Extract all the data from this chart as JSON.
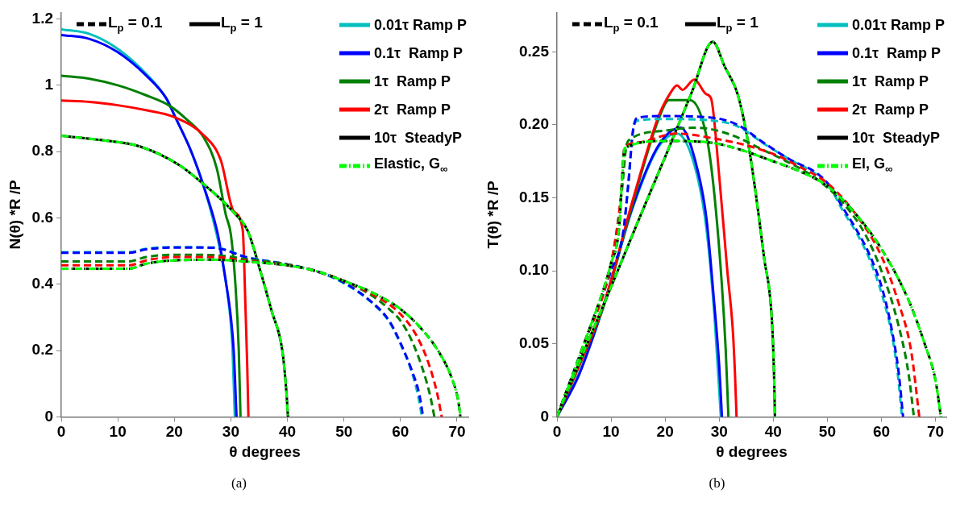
{
  "chart_data": [
    {
      "type": "line",
      "title": "(a)",
      "xlabel": "θ degrees",
      "ylabel": "N(θ) *R /P",
      "xlim": [
        0,
        72
      ],
      "ylim": [
        0,
        1.22
      ],
      "xticks": [
        0,
        10,
        20,
        30,
        40,
        50,
        60,
        70
      ],
      "yticks": [
        0,
        0.2,
        0.4,
        0.6,
        0.8,
        1,
        1.2
      ],
      "legend": "top right",
      "marker": "none",
      "annotations": [
        "L$_{p}$ = 0.1",
        "L$_{p}$ = 1"
      ],
      "series": [
        {
          "name": "0.01τ Ramp P",
          "color": "#00bfbf",
          "line_style": "solid",
          "x": [
            0,
            5,
            10,
            15,
            18.6,
            20,
            23,
            25.3,
            27.5,
            29,
            30,
            30.3,
            30.7
          ],
          "values": [
            1.169,
            1.155,
            1.11,
            1.035,
            0.96,
            0.91,
            0.8,
            0.69,
            0.55,
            0.42,
            0.28,
            0.2,
            0
          ]
        },
        {
          "name": "0.1τ  Ramp P",
          "color": "#0000ff",
          "line_style": "solid",
          "x": [
            0,
            5,
            10,
            15,
            18.6,
            20,
            23,
            25.3,
            27.7,
            29,
            30,
            30.5,
            31
          ],
          "values": [
            1.152,
            1.14,
            1.1,
            1.03,
            0.96,
            0.91,
            0.8,
            0.69,
            0.55,
            0.42,
            0.3,
            0.2,
            0
          ]
        },
        {
          "name": "1τ  Ramp P",
          "color": "#008000",
          "line_style": "solid",
          "x": [
            0,
            5,
            10,
            15,
            19,
            22,
            25.3,
            27.5,
            29.1,
            30,
            30.8,
            31.4,
            31.7
          ],
          "values": [
            1.029,
            1.02,
            1.0,
            0.97,
            0.94,
            0.9,
            0.84,
            0.75,
            0.61,
            0.55,
            0.4,
            0.2,
            0
          ]
        },
        {
          "name": "2τ  Ramp P",
          "color": "#ff0000",
          "line_style": "solid",
          "x": [
            0,
            5,
            10,
            15,
            20,
            25.3,
            28.2,
            30.5,
            32.1,
            32.6,
            32.9,
            33.1
          ],
          "values": [
            0.954,
            0.95,
            0.94,
            0.925,
            0.904,
            0.848,
            0.775,
            0.62,
            0.563,
            0.32,
            0.15,
            0
          ]
        },
        {
          "name": "10τ  SteadyP",
          "color": "#000000",
          "line_style": "solid",
          "x": [
            0,
            7,
            14,
            21,
            25.3,
            28,
            30.5,
            33,
            35.3,
            37.2,
            39.1,
            39.8,
            40.1
          ],
          "values": [
            0.848,
            0.835,
            0.815,
            0.758,
            0.7,
            0.66,
            0.617,
            0.56,
            0.435,
            0.32,
            0.2,
            0.08,
            0
          ]
        },
        {
          "name": "Elastic, G$_{∞}$",
          "color": "#00ff00",
          "line_style": "dashdot",
          "x": [
            0,
            7,
            14,
            21,
            25.3,
            28,
            30.5,
            33,
            35.3,
            37.2,
            39.1,
            39.8,
            40.1
          ],
          "values": [
            0.848,
            0.835,
            0.815,
            0.758,
            0.7,
            0.66,
            0.617,
            0.56,
            0.435,
            0.32,
            0.2,
            0.08,
            0
          ]
        },
        {
          "color": "#00bfbf",
          "line_style": "dashed",
          "x": [
            0,
            12,
            15,
            20,
            27,
            33,
            40,
            45,
            50,
            55,
            58,
            60,
            62,
            63.1,
            63.8
          ],
          "values": [
            0.497,
            0.497,
            0.507,
            0.512,
            0.511,
            0.481,
            0.46,
            0.44,
            0.403,
            0.343,
            0.287,
            0.22,
            0.135,
            0.065,
            0
          ]
        },
        {
          "color": "#0000ff",
          "line_style": "dashed",
          "x": [
            0,
            12,
            15,
            20,
            27,
            33,
            40,
            45,
            50,
            55,
            58,
            60,
            62,
            63.3,
            64
          ],
          "values": [
            0.495,
            0.495,
            0.505,
            0.511,
            0.51,
            0.48,
            0.46,
            0.44,
            0.405,
            0.345,
            0.29,
            0.223,
            0.14,
            0.07,
            0
          ]
        },
        {
          "color": "#008000",
          "line_style": "dashed",
          "x": [
            0,
            12,
            15,
            20,
            27,
            33,
            40,
            45,
            50,
            55,
            58,
            60,
            62,
            64,
            65.3,
            66
          ],
          "values": [
            0.469,
            0.469,
            0.482,
            0.489,
            0.488,
            0.475,
            0.46,
            0.44,
            0.41,
            0.365,
            0.325,
            0.29,
            0.23,
            0.14,
            0.06,
            0
          ]
        },
        {
          "color": "#ff0000",
          "line_style": "dashed",
          "x": [
            0,
            12,
            15,
            20,
            27,
            33,
            40,
            45,
            50,
            55,
            60,
            63,
            65,
            66.5,
            67.3
          ],
          "values": [
            0.457,
            0.457,
            0.472,
            0.482,
            0.482,
            0.47,
            0.458,
            0.44,
            0.41,
            0.37,
            0.31,
            0.24,
            0.16,
            0.07,
            0
          ]
        },
        {
          "color": "#000000",
          "line_style": "dashed",
          "x": [
            0,
            12,
            15,
            20,
            27,
            33,
            40,
            45,
            50,
            55,
            60,
            64,
            67,
            69,
            70.2,
            70.6
          ],
          "values": [
            0.447,
            0.447,
            0.462,
            0.472,
            0.474,
            0.468,
            0.457,
            0.44,
            0.41,
            0.375,
            0.325,
            0.26,
            0.19,
            0.12,
            0.05,
            0
          ]
        },
        {
          "color": "#00ff00",
          "line_style": "dashdot",
          "x": [
            0,
            12,
            15,
            20,
            27,
            33,
            40,
            45,
            50,
            55,
            60,
            64,
            67,
            69,
            70.2,
            70.6
          ],
          "values": [
            0.447,
            0.447,
            0.462,
            0.472,
            0.474,
            0.468,
            0.457,
            0.44,
            0.41,
            0.375,
            0.325,
            0.26,
            0.19,
            0.12,
            0.05,
            0
          ]
        }
      ]
    },
    {
      "type": "line",
      "title": "(b)",
      "xlabel": "θ degrees",
      "ylabel": "T(θ) *R /P",
      "xlim": [
        0,
        72
      ],
      "ylim": [
        0,
        0.277
      ],
      "xticks": [
        0,
        10,
        20,
        30,
        40,
        50,
        60,
        70
      ],
      "yticks": [
        0,
        0.05,
        {
          "value": 0.1,
          "label": "0.10"
        },
        0.15,
        {
          "value": 0.2,
          "label": "0.20"
        },
        0.25
      ],
      "legend": "top right",
      "marker": "none",
      "annotations": [
        "L$_{p}$ = 0.1",
        "L$_{p}$ = 1"
      ],
      "series": [
        {
          "name": "0.01τ Ramp P",
          "color": "#00bfbf",
          "line_style": "solid",
          "x": [
            0,
            4.1,
            9,
            13.9,
            18.8,
            22.2,
            25.6,
            27.6,
            29,
            29.8,
            30.3
          ],
          "values": [
            0,
            0.03,
            0.08,
            0.142,
            0.185,
            0.194,
            0.17,
            0.13,
            0.075,
            0.03,
            0
          ]
        },
        {
          "name": "0.1τ  Ramp P",
          "color": "#0000ff",
          "line_style": "solid",
          "x": [
            0,
            4.1,
            9,
            13.9,
            18.8,
            22.9,
            25.6,
            27.6,
            29,
            30,
            30.5
          ],
          "values": [
            0,
            0.029,
            0.081,
            0.143,
            0.186,
            0.198,
            0.175,
            0.137,
            0.081,
            0.035,
            0
          ]
        },
        {
          "name": "1τ  Ramp P",
          "color": "#008000",
          "line_style": "solid",
          "x": [
            0,
            4.1,
            9,
            13.9,
            18.8,
            20.7,
            24.6,
            27.6,
            29,
            30.5,
            31.2,
            31.7
          ],
          "values": [
            0,
            0.035,
            0.08,
            0.145,
            0.204,
            0.217,
            0.217,
            0.193,
            0.156,
            0.09,
            0.046,
            0
          ]
        },
        {
          "name": "2τ  Ramp P",
          "color": "#ff0000",
          "line_style": "solid",
          "x": [
            0,
            4.1,
            9,
            13.9,
            18.8,
            21,
            22.2,
            23.2,
            25.4,
            27.6,
            28.5,
            30,
            31.5,
            32.5,
            32.9,
            33.2
          ],
          "values": [
            0,
            0.035,
            0.081,
            0.147,
            0.206,
            0.222,
            0.227,
            0.224,
            0.231,
            0.221,
            0.218,
            0.165,
            0.1,
            0.06,
            0.031,
            0
          ]
        },
        {
          "name": "10τ  SteadyP",
          "color": "#000000",
          "line_style": "solid",
          "x": [
            0,
            5,
            10,
            15,
            20,
            25,
            28.8,
            31,
            33.4,
            35,
            36.3,
            38.3,
            39.8,
            40.2,
            40.3
          ],
          "values": [
            0,
            0.045,
            0.089,
            0.134,
            0.178,
            0.223,
            0.257,
            0.24,
            0.221,
            0.195,
            0.165,
            0.109,
            0.0625,
            0.02,
            0
          ]
        },
        {
          "name": "El, G$_{∞}$",
          "color": "#00ff00",
          "line_style": "dashdot",
          "x": [
            0,
            5,
            10,
            15,
            20,
            25,
            28.8,
            31,
            33.4,
            35,
            36.3,
            38.3,
            39.8,
            40.2,
            40.3
          ],
          "values": [
            0,
            0.045,
            0.089,
            0.134,
            0.178,
            0.223,
            0.257,
            0.24,
            0.221,
            0.195,
            0.165,
            0.109,
            0.0625,
            0.02,
            0
          ]
        },
        {
          "color": "#00bfbf",
          "line_style": "dashed",
          "x": [
            0,
            5,
            10,
            12.2,
            13.2,
            14,
            15,
            20,
            28.5,
            33.4,
            38.3,
            43.2,
            48,
            50.5,
            52.9,
            55.4,
            57.8,
            60,
            62,
            63,
            63.8
          ],
          "values": [
            0,
            0.05,
            0.1,
            0.125,
            0.16,
            0.195,
            0.203,
            0.204,
            0.203,
            0.199,
            0.187,
            0.176,
            0.166,
            0.157,
            0.141,
            0.126,
            0.108,
            0.085,
            0.055,
            0.03,
            0
          ]
        },
        {
          "color": "#0000ff",
          "line_style": "dashed",
          "x": [
            0,
            5,
            10,
            12.2,
            13.2,
            14.1,
            15,
            20,
            28.5,
            33.4,
            38.3,
            43.2,
            48,
            50.5,
            52.9,
            55.4,
            57.8,
            60.2,
            62,
            63.2,
            64
          ],
          "values": [
            0,
            0.05,
            0.1,
            0.125,
            0.16,
            0.197,
            0.205,
            0.206,
            0.205,
            0.2,
            0.1875,
            0.176,
            0.167,
            0.158,
            0.143,
            0.128,
            0.111,
            0.087,
            0.058,
            0.03,
            0
          ]
        },
        {
          "color": "#008000",
          "line_style": "dashed",
          "x": [
            0,
            5,
            10,
            12,
            12.8,
            13.5,
            20,
            25,
            28.5,
            33,
            38,
            43,
            48,
            53,
            57,
            60,
            63,
            65,
            66
          ],
          "values": [
            0,
            0.05,
            0.105,
            0.155,
            0.185,
            0.19,
            0.196,
            0.198,
            0.197,
            0.192,
            0.183,
            0.174,
            0.163,
            0.146,
            0.125,
            0.1,
            0.065,
            0.03,
            0
          ]
        },
        {
          "color": "#ff0000",
          "line_style": "dashed",
          "x": [
            0,
            5,
            10,
            11.8,
            12.5,
            15,
            22,
            30,
            35,
            40,
            45,
            50,
            55,
            60,
            63,
            65.5,
            67
          ],
          "values": [
            0,
            0.05,
            0.105,
            0.15,
            0.184,
            0.188,
            0.194,
            0.19,
            0.186,
            0.18,
            0.171,
            0.16,
            0.14,
            0.11,
            0.08,
            0.045,
            0
          ]
        },
        {
          "color": "#000000",
          "line_style": "dashed",
          "x": [
            0,
            5,
            10,
            11.5,
            12,
            12.5,
            20,
            28,
            33,
            40,
            45,
            50,
            55,
            60,
            65,
            68,
            70,
            71
          ],
          "values": [
            0,
            0.05,
            0.105,
            0.13,
            0.16,
            0.184,
            0.189,
            0.188,
            0.184,
            0.175,
            0.168,
            0.158,
            0.14,
            0.115,
            0.08,
            0.05,
            0.025,
            0
          ]
        },
        {
          "color": "#00ff00",
          "line_style": "dashdot",
          "x": [
            0,
            5,
            10,
            11.5,
            12,
            12.5,
            20,
            28,
            33,
            40,
            45,
            50,
            55,
            60,
            65,
            68,
            70,
            71
          ],
          "values": [
            0,
            0.05,
            0.105,
            0.13,
            0.16,
            0.184,
            0.189,
            0.188,
            0.184,
            0.175,
            0.168,
            0.158,
            0.14,
            0.115,
            0.08,
            0.05,
            0.025,
            0
          ]
        }
      ]
    }
  ]
}
